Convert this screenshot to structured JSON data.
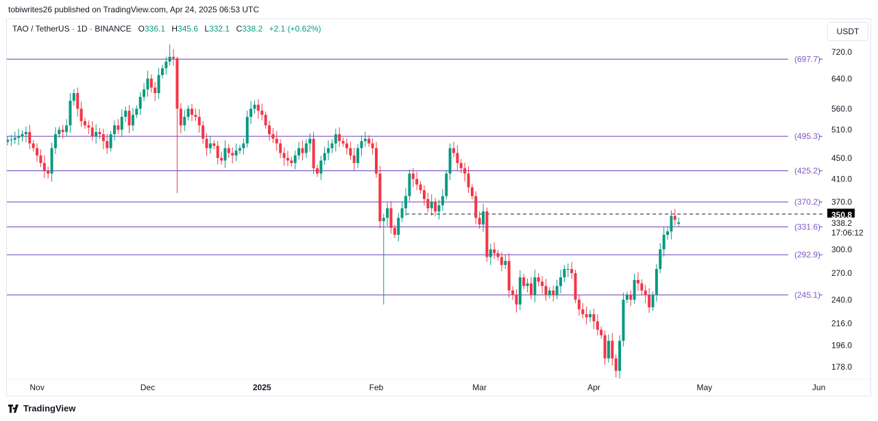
{
  "publisher_line": "tobiwrites26 published on TradingView.com, Apr 24, 2025 06:53 UTC",
  "legend": {
    "symbol": "TAO / TetherUS · 1D · BINANCE",
    "o_label": "O",
    "o": "336.1",
    "h_label": "H",
    "h": "345.6",
    "l_label": "L",
    "l": "332.1",
    "c_label": "C",
    "c": "338.2",
    "change": "+2.1 (+0.62%)"
  },
  "currency_button": "USDT",
  "footer_brand": "TradingView",
  "colors": {
    "up": "#089981",
    "down": "#f23645",
    "level": "#673ab7",
    "level_label": "#7e57c2"
  },
  "chart_data": {
    "type": "candlestick",
    "title": "TAO / TetherUS · 1D · BINANCE",
    "scale": "log",
    "start_date": "2024-10-24",
    "end_date": "2025-04-24",
    "close": [
      488,
      488,
      492,
      495,
      500,
      505,
      480,
      470,
      455,
      440,
      425,
      420,
      470,
      500,
      510,
      505,
      520,
      580,
      600,
      560,
      530,
      520,
      515,
      495,
      505,
      500,
      485,
      470,
      500,
      520,
      510,
      540,
      555,
      520,
      545,
      560,
      590,
      610,
      640,
      615,
      600,
      650,
      670,
      690,
      705,
      700,
      560,
      520,
      540,
      560,
      545,
      540,
      520,
      490,
      470,
      480,
      475,
      450,
      445,
      470,
      460,
      455,
      465,
      470,
      480,
      540,
      560,
      570,
      555,
      545,
      520,
      500,
      490,
      480,
      460,
      450,
      445,
      440,
      455,
      470,
      460,
      480,
      490,
      430,
      420,
      445,
      460,
      470,
      480,
      500,
      485,
      480,
      470,
      455,
      440,
      470,
      485,
      490,
      480,
      470,
      420,
      340,
      345,
      360,
      330,
      320,
      345,
      360,
      380,
      420,
      410,
      400,
      390,
      375,
      360,
      370,
      355,
      365,
      380,
      420,
      470,
      460,
      440,
      430,
      420,
      395,
      380,
      345,
      335,
      355,
      290,
      300,
      295,
      290,
      280,
      285,
      250,
      245,
      235,
      265,
      255,
      258,
      245,
      265,
      260,
      255,
      245,
      250,
      245,
      255,
      265,
      275,
      275,
      270,
      240,
      230,
      225,
      222,
      225,
      218,
      210,
      205,
      185,
      200,
      185,
      175,
      200,
      240,
      245,
      240,
      262,
      258,
      250,
      245,
      232,
      245,
      275,
      300,
      320,
      325,
      348,
      342,
      338.2
    ],
    "last_candle": {
      "open": 336.1,
      "high": 345.6,
      "low": 332.1,
      "close": 338.2
    },
    "wick_extremes": [
      {
        "date": "2024-12-09",
        "low": 385,
        "high": 705
      },
      {
        "date": "2024-12-07",
        "high": 745
      },
      {
        "date": "2025-02-03",
        "low": 235
      },
      {
        "date": "2025-04-07",
        "low": 170
      }
    ],
    "y_ticks": [
      "720.0",
      "640.0",
      "560.0",
      "510.0",
      "450.0",
      "410.0",
      "370.0",
      "300.0",
      "270.0",
      "240.0",
      "216.0",
      "196.0",
      "178.0"
    ],
    "x_ticks": [
      {
        "label": "Nov",
        "date": "2024-11-01"
      },
      {
        "label": "Dec",
        "date": "2024-12-01"
      },
      {
        "label": "2025",
        "date": "2025-01-01",
        "bold": true
      },
      {
        "label": "Feb",
        "date": "2025-02-01"
      },
      {
        "label": "Mar",
        "date": "2025-03-01"
      },
      {
        "label": "Apr",
        "date": "2025-04-01"
      },
      {
        "label": "May",
        "date": "2025-05-01"
      },
      {
        "label": "Jun",
        "date": "2025-06-01"
      }
    ],
    "levels": [
      {
        "value": 697.7,
        "label": "(697.7)"
      },
      {
        "value": 495.3,
        "label": "(495.3)"
      },
      {
        "value": 425.2,
        "label": "(425.2)"
      },
      {
        "value": 370.2,
        "label": "(370.2)"
      },
      {
        "value": 331.6,
        "label": "(331.6)"
      },
      {
        "value": 292.9,
        "label": "(292.9)"
      },
      {
        "value": 245.1,
        "label": "(245.1)"
      }
    ],
    "dashed_level": {
      "value": 350.8,
      "label": "350.8",
      "from_date": "2025-02-09"
    },
    "current_price": {
      "value": 338.2,
      "label": "338.2",
      "countdown": "17:06:12"
    }
  }
}
